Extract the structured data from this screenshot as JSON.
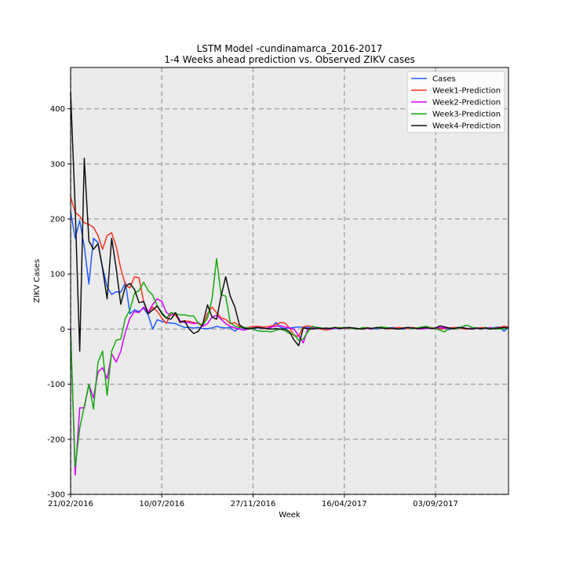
{
  "chart_data": {
    "type": "line",
    "title": "LSTM Model -cundinamarca_2016-2017",
    "subtitle": "1-4 Weeks ahead prediction vs. Observed ZIKV cases",
    "xlabel": "Week",
    "ylabel": "ZIKV Cases",
    "xlim": [
      0,
      96
    ],
    "ylim": [
      -300,
      475
    ],
    "x_ticks": [
      {
        "value": 0,
        "label": "21/02/2016"
      },
      {
        "value": 20,
        "label": "10/07/2016"
      },
      {
        "value": 40,
        "label": "27/11/2016"
      },
      {
        "value": 60,
        "label": "16/04/2017"
      },
      {
        "value": 80,
        "label": "03/09/2017"
      }
    ],
    "y_ticks": [
      -300,
      -200,
      -100,
      0,
      100,
      200,
      300,
      400
    ],
    "grid": true,
    "legend_position": "top-right",
    "background": "#ebebeb",
    "series": [
      {
        "name": "Cases",
        "color": "#1f5cff",
        "values": [
          213,
          165,
          197,
          150,
          82,
          165,
          157,
          112,
          77,
          63,
          68,
          67,
          85,
          28,
          35,
          32,
          38,
          26,
          0,
          17,
          14,
          12,
          11,
          10,
          6,
          3,
          3,
          2,
          3,
          1,
          1,
          2,
          5,
          3,
          2,
          3,
          -4,
          3,
          1,
          1,
          1,
          2,
          2,
          1,
          3,
          12,
          3,
          1,
          2,
          3,
          4,
          3,
          3,
          2,
          1,
          1,
          0,
          1,
          1,
          1,
          2,
          2,
          2,
          1,
          1,
          2,
          2,
          0,
          3,
          1,
          2,
          3,
          1,
          0,
          2,
          1,
          2,
          3,
          2,
          1,
          2,
          2,
          1,
          -1,
          2,
          3,
          2,
          1,
          0,
          2,
          2,
          1,
          2,
          3,
          4,
          -4,
          3
        ]
      },
      {
        "name": "Week1-Prediction",
        "color": "#ff3322",
        "values": [
          240,
          212,
          205,
          193,
          190,
          185,
          170,
          145,
          170,
          175,
          150,
          110,
          80,
          75,
          95,
          93,
          50,
          30,
          40,
          32,
          20,
          10,
          30,
          25,
          14,
          15,
          14,
          12,
          10,
          5,
          28,
          40,
          30,
          20,
          18,
          10,
          12,
          5,
          2,
          3,
          5,
          5,
          4,
          4,
          6,
          8,
          12,
          11,
          2,
          -12,
          -13,
          4,
          6,
          4,
          2,
          0,
          -2,
          0,
          2,
          3,
          2,
          1,
          2,
          1,
          0,
          3,
          1,
          2,
          4,
          2,
          0,
          2,
          3,
          2,
          1,
          3,
          2,
          1,
          2,
          3,
          1,
          0,
          1,
          2,
          3,
          2,
          1,
          0,
          2,
          1,
          3,
          2,
          1,
          2,
          3,
          5,
          4
        ]
      },
      {
        "name": "Week2-Prediction",
        "color": "#d600ff",
        "values": [
          0,
          -265,
          -143,
          -143,
          -100,
          -125,
          -78,
          -70,
          -90,
          -45,
          -60,
          -40,
          -5,
          20,
          32,
          30,
          40,
          30,
          45,
          55,
          50,
          30,
          25,
          30,
          15,
          12,
          12,
          10,
          12,
          5,
          10,
          22,
          25,
          18,
          10,
          5,
          2,
          0,
          -2,
          1,
          2,
          3,
          2,
          1,
          4,
          5,
          6,
          4,
          2,
          0,
          -12,
          -25,
          0,
          2,
          3,
          2,
          1,
          0,
          2,
          1,
          2,
          2,
          1,
          0,
          2,
          1,
          0,
          2,
          3,
          1,
          2,
          1,
          0,
          2,
          3,
          2,
          1,
          0,
          2,
          1,
          2,
          3,
          2,
          1,
          0,
          2,
          3,
          1,
          2,
          1,
          0,
          2,
          3,
          1,
          2,
          3,
          2
        ]
      },
      {
        "name": "Week3-Prediction",
        "color": "#16a90e",
        "values": [
          -5,
          -250,
          -180,
          -140,
          -100,
          -145,
          -60,
          -40,
          -120,
          -40,
          -20,
          -18,
          20,
          35,
          65,
          70,
          85,
          70,
          62,
          42,
          30,
          20,
          30,
          28,
          26,
          26,
          24,
          24,
          10,
          8,
          20,
          55,
          128,
          62,
          60,
          12,
          5,
          3,
          3,
          2,
          0,
          -3,
          -4,
          -4,
          -5,
          -2,
          0,
          -3,
          -8,
          -10,
          -20,
          -18,
          -5,
          5,
          3,
          2,
          1,
          2,
          3,
          2,
          3,
          2,
          1,
          0,
          3,
          2,
          1,
          2,
          4,
          3,
          2,
          1,
          0,
          2,
          3,
          1,
          2,
          4,
          5,
          2,
          1,
          -2,
          -5,
          2,
          0,
          2,
          5,
          7,
          3,
          2,
          0,
          3,
          1,
          2,
          0,
          1,
          2
        ]
      },
      {
        "name": "Week4-Prediction",
        "color": "#111111",
        "values": [
          430,
          220,
          -40,
          310,
          160,
          145,
          155,
          110,
          55,
          165,
          110,
          45,
          78,
          83,
          72,
          48,
          50,
          28,
          35,
          42,
          28,
          20,
          18,
          30,
          12,
          15,
          0,
          -8,
          -4,
          10,
          44,
          22,
          18,
          60,
          95,
          60,
          40,
          8,
          2,
          0,
          2,
          3,
          2,
          1,
          0,
          1,
          0,
          0,
          -5,
          -20,
          -30,
          2,
          1,
          0,
          2,
          1,
          2,
          1,
          3,
          1,
          2,
          3,
          2,
          1,
          0,
          2,
          1,
          3,
          2,
          1,
          2,
          1,
          0,
          2,
          3,
          2,
          1,
          2,
          3,
          1,
          2,
          6,
          4,
          2,
          1,
          3,
          2,
          1,
          0,
          2,
          1,
          2,
          0,
          1,
          2,
          3,
          2
        ]
      }
    ]
  }
}
